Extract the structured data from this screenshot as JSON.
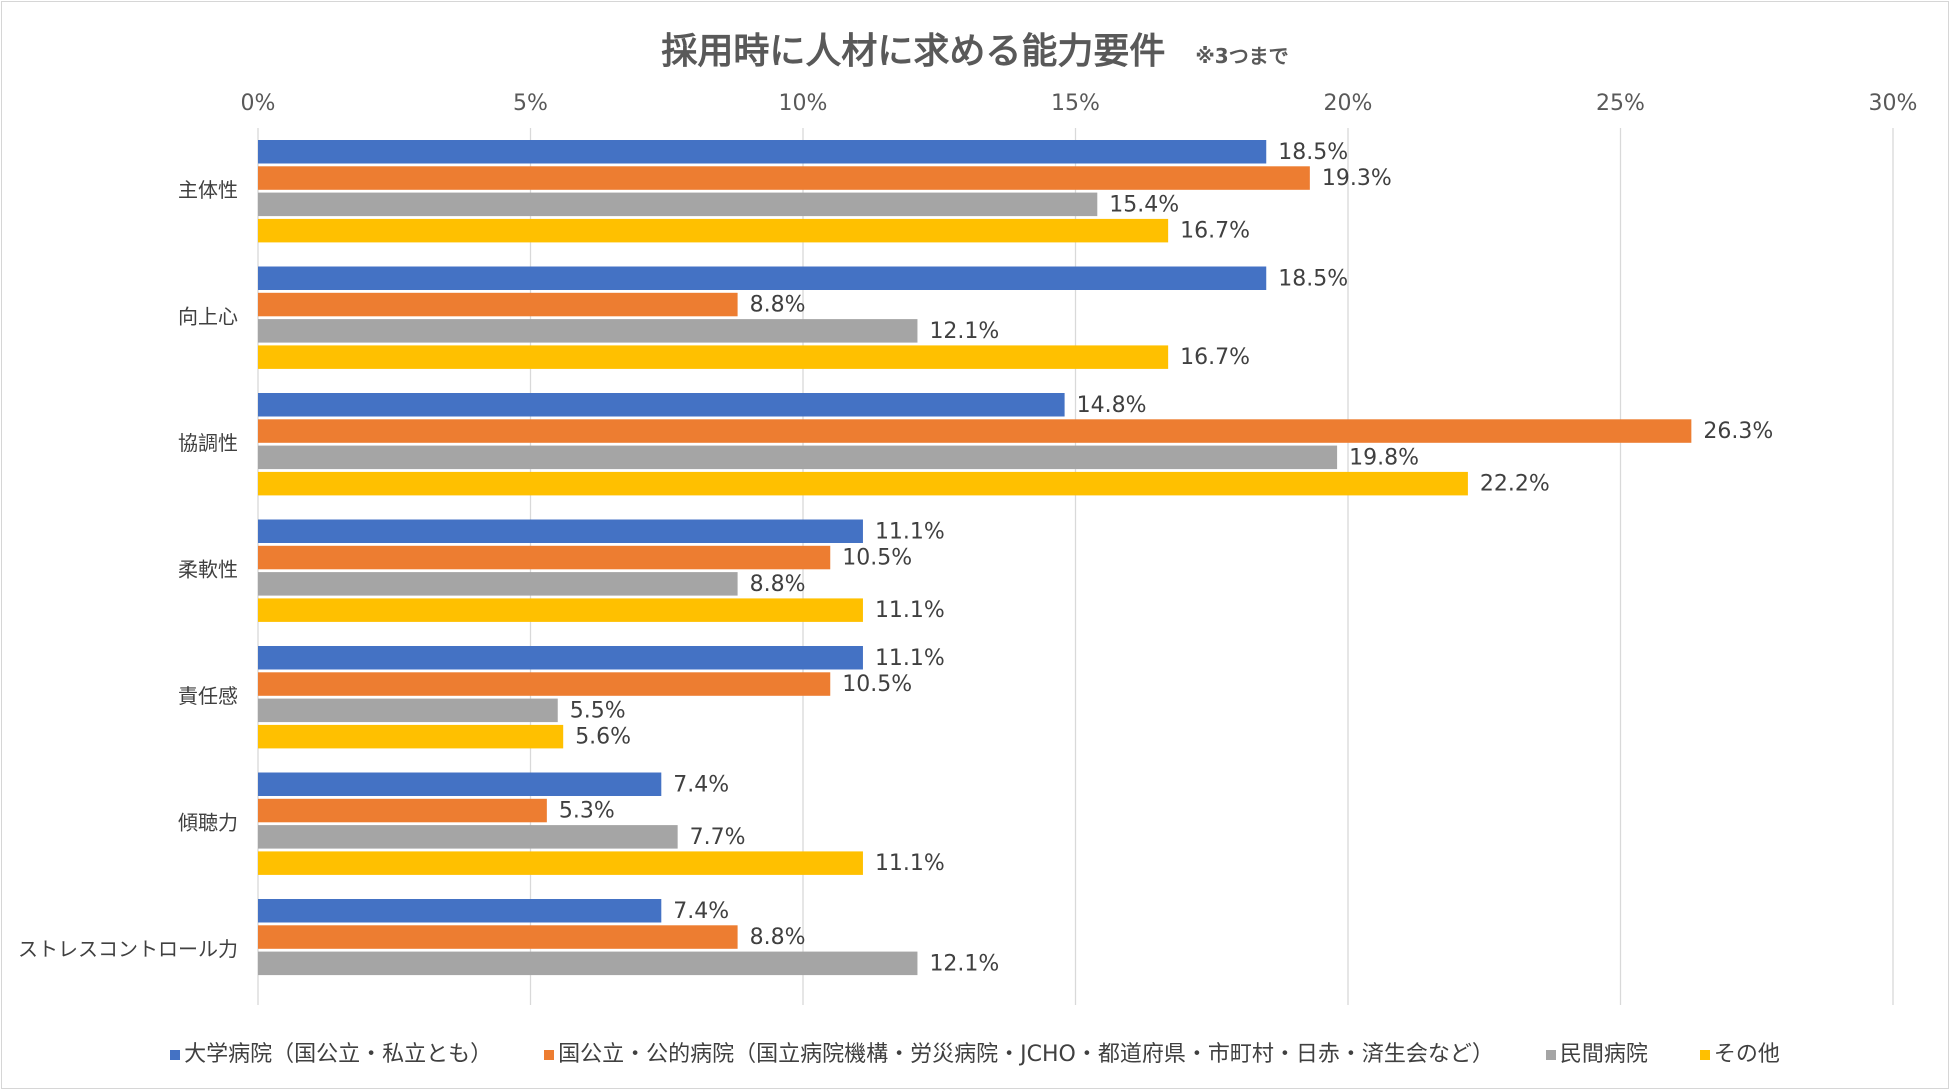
{
  "chart_data": {
    "type": "bar",
    "orientation": "horizontal",
    "title": "採用時に人材に求める能力要件",
    "subtitle": "※3つまで",
    "categories": [
      "主体性",
      "向上心",
      "協調性",
      "柔軟性",
      "責任感",
      "傾聴力",
      "ストレスコントロール力"
    ],
    "series": [
      {
        "name": "大学病院（国公立・私立とも）",
        "color": "#4472C4",
        "values": [
          18.5,
          18.5,
          14.8,
          11.1,
          11.1,
          7.4,
          7.4
        ]
      },
      {
        "name": "国公立・公的病院（国立病院機構・労災病院・JCHO・都道府県・市町村・日赤・済生会など）",
        "color": "#ED7D31",
        "values": [
          19.3,
          8.8,
          26.3,
          10.5,
          10.5,
          5.3,
          8.8
        ]
      },
      {
        "name": "民間病院",
        "color": "#A5A5A5",
        "values": [
          15.4,
          12.1,
          19.8,
          8.8,
          5.5,
          7.7,
          12.1
        ]
      },
      {
        "name": "その他",
        "color": "#FFC000",
        "values": [
          16.7,
          16.7,
          22.2,
          11.1,
          5.6,
          11.1,
          null
        ]
      }
    ],
    "x_ticks": [
      "0%",
      "5%",
      "10%",
      "15%",
      "20%",
      "25%",
      "30%"
    ],
    "xlim": [
      0,
      30
    ],
    "value_suffix": "%",
    "grid": true,
    "xaxis_position": "top",
    "legend_position": "bottom"
  }
}
